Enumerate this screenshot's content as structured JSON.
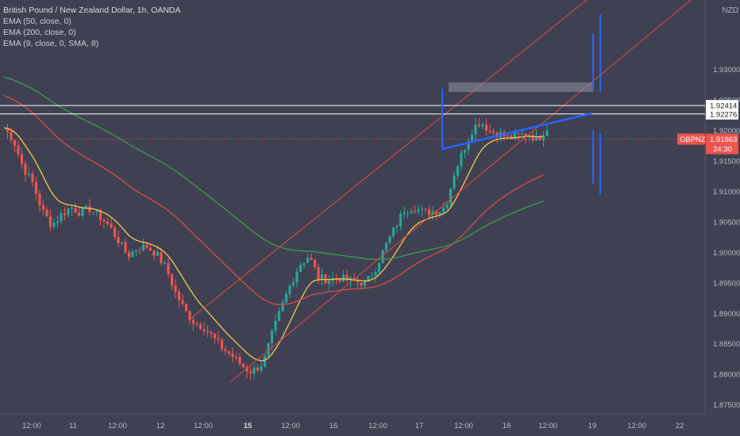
{
  "header": {
    "title": "British Pound / New Zealand Dollar, 1h, OANDA",
    "indicators": [
      "EMA (50, close, 0)",
      "EMA (200, close, 0)",
      "EMA (9, close, 0, SMA, 8)"
    ],
    "currency": "NZD"
  },
  "price_labels": {
    "upper_level": "1.92414",
    "lower_level": "1.92276",
    "symbol": "GBPNZD",
    "last_price": "1.91863",
    "countdown": "24:30"
  },
  "colors": {
    "background": "#3f4152",
    "up_candle": "#26a69a",
    "down_candle": "#ef5350",
    "ema9": "#f2c94c",
    "ema50": "#d94b4b",
    "ema200": "#3f9a4e",
    "channel": "#e04848",
    "trendline": "#2962ff",
    "levels": "#ffffff",
    "price_tag": "#ef5350"
  },
  "chart_data": {
    "type": "candlestick",
    "symbol": "GBPNZD",
    "timeframe": "1h",
    "y_ticks": [
      "1.93000",
      "1.92500",
      "1.92000",
      "1.91500",
      "1.91000",
      "1.90500",
      "1.90000",
      "1.89500",
      "1.89000",
      "1.88500",
      "1.88000",
      "1.87500"
    ],
    "x_ticks": [
      "12:00",
      "11",
      "12:00",
      "12",
      "12:00",
      "15",
      "12:00",
      "16",
      "12:00",
      "17",
      "12:00",
      "18",
      "12:00",
      "19",
      "12:00",
      "22"
    ],
    "bold_x_ticks": [
      "15"
    ],
    "ylim": [
      1.874,
      1.9405
    ],
    "horizontal_levels": [
      1.92414,
      1.92276
    ],
    "last_price": 1.91863,
    "close_path": [
      [
        0,
        1.9205
      ],
      [
        8,
        1.9185
      ],
      [
        16,
        1.914
      ],
      [
        24,
        1.9115
      ],
      [
        32,
        1.907
      ],
      [
        40,
        1.9045
      ],
      [
        48,
        1.9062
      ],
      [
        56,
        1.9075
      ],
      [
        64,
        1.9066
      ],
      [
        72,
        1.9072
      ],
      [
        80,
        1.906
      ],
      [
        88,
        1.9045
      ],
      [
        96,
        1.902
      ],
      [
        104,
        1.8995
      ],
      [
        112,
        1.9008
      ],
      [
        120,
        1.901
      ],
      [
        128,
        1.8998
      ],
      [
        136,
        1.8975
      ],
      [
        144,
        1.8935
      ],
      [
        152,
        1.8905
      ],
      [
        160,
        1.8885
      ],
      [
        168,
        1.8878
      ],
      [
        176,
        1.886
      ],
      [
        184,
        1.8842
      ],
      [
        192,
        1.883
      ],
      [
        200,
        1.8815
      ],
      [
        206,
        1.8805
      ],
      [
        212,
        1.881
      ],
      [
        218,
        1.882
      ],
      [
        224,
        1.886
      ],
      [
        232,
        1.8905
      ],
      [
        240,
        1.8945
      ],
      [
        248,
        1.898
      ],
      [
        256,
        1.8995
      ],
      [
        264,
        1.896
      ],
      [
        272,
        1.8955
      ],
      [
        280,
        1.896
      ],
      [
        288,
        1.8955
      ],
      [
        296,
        1.8952
      ],
      [
        304,
        1.895
      ],
      [
        312,
        1.8975
      ],
      [
        320,
        1.901
      ],
      [
        328,
        1.904
      ],
      [
        336,
        1.907
      ],
      [
        344,
        1.9075
      ],
      [
        352,
        1.9066
      ],
      [
        360,
        1.9068
      ],
      [
        368,
        1.907
      ],
      [
        372,
        1.9085
      ],
      [
        378,
        1.913
      ],
      [
        386,
        1.917
      ],
      [
        394,
        1.9205
      ],
      [
        400,
        1.9215
      ],
      [
        408,
        1.92
      ],
      [
        416,
        1.9195
      ],
      [
        424,
        1.9188
      ],
      [
        432,
        1.9192
      ],
      [
        440,
        1.9195
      ],
      [
        448,
        1.9185
      ],
      [
        456,
        1.9205
      ],
      [
        464,
        1.919
      ],
      [
        472,
        1.9186
      ]
    ]
  }
}
